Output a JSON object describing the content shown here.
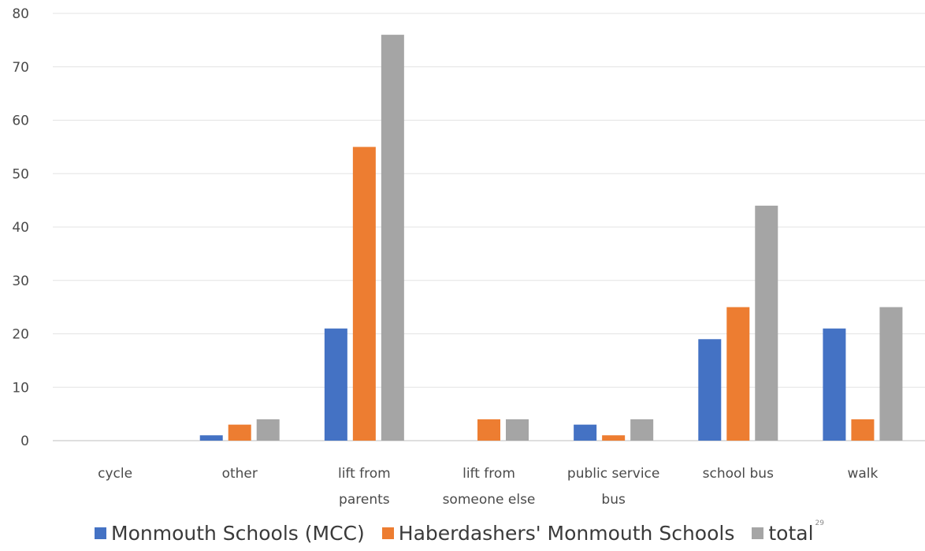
{
  "chart_data": {
    "type": "bar",
    "categories": [
      [
        "cycle"
      ],
      [
        "other"
      ],
      [
        "lift from",
        "parents"
      ],
      [
        "lift from",
        "someone else"
      ],
      [
        "public service",
        "bus"
      ],
      [
        "school bus"
      ],
      [
        "walk"
      ]
    ],
    "series": [
      {
        "name": "Monmouth Schools (MCC)",
        "color": "#4472c4",
        "values": [
          0,
          1,
          21,
          0,
          3,
          19,
          21
        ]
      },
      {
        "name": "Haberdashers' Monmouth Schools",
        "color": "#ed7d31",
        "values": [
          0,
          3,
          55,
          4,
          1,
          25,
          4
        ]
      },
      {
        "name": "total",
        "color": "#a5a5a5",
        "values": [
          0,
          4,
          76,
          4,
          4,
          44,
          25
        ]
      }
    ],
    "ylim": [
      0,
      80
    ],
    "yticks": [
      0,
      10,
      20,
      30,
      40,
      50,
      60,
      70,
      80
    ],
    "grid": true,
    "legend_position": "bottom",
    "title": "",
    "xlabel": "",
    "ylabel": ""
  },
  "page_number": "29"
}
